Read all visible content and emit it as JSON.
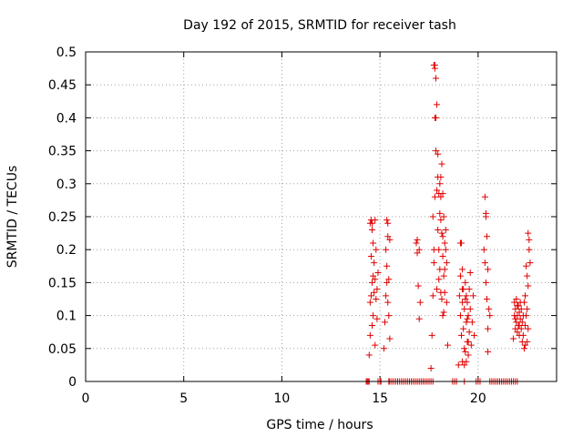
{
  "chart_data": {
    "type": "scatter",
    "title": "Day 192 of 2015, SRMTID for receiver tash",
    "xlabel": "GPS time / hours",
    "ylabel": "SRMTID / TECUs",
    "xlim": [
      0,
      24
    ],
    "ylim": [
      0,
      0.5
    ],
    "xticks": [
      0,
      5,
      10,
      15,
      20
    ],
    "yticks": [
      0,
      0.05,
      0.1,
      0.15,
      0.2,
      0.25,
      0.3,
      0.35,
      0.4,
      0.45,
      0.5
    ],
    "xtick_labels": [
      "0",
      "5",
      "10",
      "15",
      "20"
    ],
    "ytick_labels": [
      "0",
      "0.05",
      "0.1",
      "0.15",
      "0.2",
      "0.25",
      "0.3",
      "0.35",
      "0.4",
      "0.45",
      "0.5"
    ],
    "grid": true,
    "marker": "+",
    "color": "#e00000",
    "series": [
      {
        "name": "SRMTID",
        "points": [
          [
            14.3,
            0.0
          ],
          [
            14.35,
            0.0
          ],
          [
            14.4,
            0.0
          ],
          [
            14.45,
            0.0
          ],
          [
            14.9,
            0.0
          ],
          [
            15.0,
            0.0
          ],
          [
            15.05,
            0.0
          ],
          [
            15.45,
            0.0
          ],
          [
            15.5,
            0.0
          ],
          [
            15.6,
            0.0
          ],
          [
            15.7,
            0.0
          ],
          [
            15.8,
            0.0
          ],
          [
            15.9,
            0.0
          ],
          [
            16.0,
            0.0
          ],
          [
            16.1,
            0.0
          ],
          [
            16.2,
            0.0
          ],
          [
            16.3,
            0.0
          ],
          [
            16.4,
            0.0
          ],
          [
            16.5,
            0.0
          ],
          [
            16.6,
            0.0
          ],
          [
            16.7,
            0.0
          ],
          [
            16.8,
            0.0
          ],
          [
            16.9,
            0.0
          ],
          [
            17.0,
            0.0
          ],
          [
            17.1,
            0.0
          ],
          [
            17.2,
            0.0
          ],
          [
            17.3,
            0.0
          ],
          [
            17.4,
            0.0
          ],
          [
            17.5,
            0.0
          ],
          [
            17.6,
            0.0
          ],
          [
            17.7,
            0.0
          ],
          [
            18.7,
            0.0
          ],
          [
            18.8,
            0.0
          ],
          [
            18.9,
            0.0
          ],
          [
            19.3,
            0.0
          ],
          [
            19.9,
            0.0
          ],
          [
            20.0,
            0.0
          ],
          [
            20.1,
            0.0
          ],
          [
            20.6,
            0.0
          ],
          [
            20.7,
            0.0
          ],
          [
            20.8,
            0.0
          ],
          [
            20.9,
            0.0
          ],
          [
            21.0,
            0.0
          ],
          [
            21.1,
            0.0
          ],
          [
            21.2,
            0.0
          ],
          [
            21.3,
            0.0
          ],
          [
            21.4,
            0.0
          ],
          [
            21.5,
            0.0
          ],
          [
            21.6,
            0.0
          ],
          [
            21.7,
            0.0
          ],
          [
            21.8,
            0.0
          ],
          [
            21.9,
            0.0
          ],
          [
            22.0,
            0.0
          ],
          [
            14.45,
            0.04
          ],
          [
            14.5,
            0.07
          ],
          [
            14.5,
            0.12
          ],
          [
            14.5,
            0.24
          ],
          [
            14.55,
            0.245
          ],
          [
            14.55,
            0.13
          ],
          [
            14.6,
            0.23
          ],
          [
            14.6,
            0.15
          ],
          [
            14.6,
            0.085
          ],
          [
            14.65,
            0.21
          ],
          [
            14.65,
            0.16
          ],
          [
            14.65,
            0.1
          ],
          [
            14.7,
            0.18
          ],
          [
            14.7,
            0.135
          ],
          [
            14.75,
            0.245
          ],
          [
            14.75,
            0.155
          ],
          [
            14.75,
            0.055
          ],
          [
            14.8,
            0.2
          ],
          [
            14.8,
            0.125
          ],
          [
            14.85,
            0.14
          ],
          [
            14.85,
            0.095
          ],
          [
            14.9,
            0.165
          ],
          [
            14.6,
            0.24
          ],
          [
            14.55,
            0.19
          ],
          [
            15.2,
            0.05
          ],
          [
            15.25,
            0.09
          ],
          [
            15.3,
            0.13
          ],
          [
            15.3,
            0.2
          ],
          [
            15.35,
            0.245
          ],
          [
            15.35,
            0.175
          ],
          [
            15.4,
            0.22
          ],
          [
            15.4,
            0.12
          ],
          [
            15.45,
            0.155
          ],
          [
            15.45,
            0.1
          ],
          [
            15.5,
            0.215
          ],
          [
            15.5,
            0.065
          ],
          [
            15.35,
            0.15
          ],
          [
            15.4,
            0.24
          ],
          [
            16.85,
            0.21
          ],
          [
            16.9,
            0.195
          ],
          [
            16.95,
            0.145
          ],
          [
            17.0,
            0.095
          ],
          [
            17.05,
            0.12
          ],
          [
            16.9,
            0.215
          ],
          [
            17.0,
            0.2
          ],
          [
            17.6,
            0.02
          ],
          [
            17.65,
            0.07
          ],
          [
            17.7,
            0.13
          ],
          [
            17.7,
            0.25
          ],
          [
            17.75,
            0.18
          ],
          [
            17.75,
            0.48
          ],
          [
            17.8,
            0.475
          ],
          [
            17.8,
            0.4
          ],
          [
            17.85,
            0.46
          ],
          [
            17.85,
            0.35
          ],
          [
            17.9,
            0.42
          ],
          [
            17.9,
            0.29
          ],
          [
            17.9,
            0.14
          ],
          [
            17.95,
            0.345
          ],
          [
            17.95,
            0.23
          ],
          [
            18.0,
            0.285
          ],
          [
            18.0,
            0.2
          ],
          [
            18.0,
            0.155
          ],
          [
            18.05,
            0.255
          ],
          [
            18.05,
            0.17
          ],
          [
            18.1,
            0.31
          ],
          [
            18.1,
            0.245
          ],
          [
            18.1,
            0.135
          ],
          [
            18.15,
            0.33
          ],
          [
            18.15,
            0.225
          ],
          [
            18.15,
            0.125
          ],
          [
            18.2,
            0.285
          ],
          [
            18.2,
            0.19
          ],
          [
            18.2,
            0.1
          ],
          [
            18.25,
            0.25
          ],
          [
            18.25,
            0.16
          ],
          [
            18.3,
            0.21
          ],
          [
            18.3,
            0.135
          ],
          [
            18.35,
            0.23
          ],
          [
            18.35,
            0.2
          ],
          [
            18.4,
            0.18
          ],
          [
            18.4,
            0.12
          ],
          [
            18.45,
            0.055
          ],
          [
            17.8,
            0.48
          ],
          [
            17.85,
            0.4
          ],
          [
            17.95,
            0.31
          ],
          [
            18.05,
            0.3
          ],
          [
            18.1,
            0.28
          ],
          [
            18.2,
            0.22
          ],
          [
            18.3,
            0.17
          ],
          [
            17.75,
            0.2
          ],
          [
            17.8,
            0.28
          ],
          [
            18.25,
            0.105
          ],
          [
            19.0,
            0.025
          ],
          [
            19.05,
            0.13
          ],
          [
            19.1,
            0.16
          ],
          [
            19.1,
            0.1
          ],
          [
            19.15,
            0.21
          ],
          [
            19.15,
            0.07
          ],
          [
            19.2,
            0.17
          ],
          [
            19.2,
            0.12
          ],
          [
            19.2,
            0.03
          ],
          [
            19.25,
            0.14
          ],
          [
            19.25,
            0.08
          ],
          [
            19.3,
            0.11
          ],
          [
            19.3,
            0.05
          ],
          [
            19.35,
            0.15
          ],
          [
            19.35,
            0.045
          ],
          [
            19.4,
            0.13
          ],
          [
            19.4,
            0.09
          ],
          [
            19.45,
            0.12
          ],
          [
            19.45,
            0.06
          ],
          [
            19.5,
            0.1
          ],
          [
            19.5,
            0.04
          ],
          [
            19.55,
            0.14
          ],
          [
            19.55,
            0.075
          ],
          [
            19.6,
            0.165
          ],
          [
            19.6,
            0.11
          ],
          [
            19.65,
            0.055
          ],
          [
            19.7,
            0.09
          ],
          [
            19.75,
            0.13
          ],
          [
            19.8,
            0.07
          ],
          [
            19.1,
            0.21
          ],
          [
            19.2,
            0.14
          ],
          [
            19.3,
            0.025
          ],
          [
            19.4,
            0.03
          ],
          [
            19.5,
            0.06
          ],
          [
            19.45,
            0.095
          ],
          [
            19.35,
            0.125
          ],
          [
            20.3,
            0.2
          ],
          [
            20.35,
            0.28
          ],
          [
            20.35,
            0.18
          ],
          [
            20.4,
            0.25
          ],
          [
            20.4,
            0.15
          ],
          [
            20.45,
            0.22
          ],
          [
            20.45,
            0.125
          ],
          [
            20.5,
            0.17
          ],
          [
            20.5,
            0.08
          ],
          [
            20.55,
            0.11
          ],
          [
            20.5,
            0.045
          ],
          [
            20.6,
            0.1
          ],
          [
            20.4,
            0.255
          ],
          [
            21.8,
            0.065
          ],
          [
            21.85,
            0.1
          ],
          [
            21.85,
            0.12
          ],
          [
            21.9,
            0.08
          ],
          [
            21.9,
            0.11
          ],
          [
            21.95,
            0.09
          ],
          [
            21.95,
            0.125
          ],
          [
            22.0,
            0.075
          ],
          [
            22.0,
            0.1
          ],
          [
            22.05,
            0.115
          ],
          [
            22.05,
            0.085
          ],
          [
            22.1,
            0.105
          ],
          [
            22.1,
            0.07
          ],
          [
            22.15,
            0.095
          ],
          [
            22.15,
            0.12
          ],
          [
            22.2,
            0.08
          ],
          [
            22.2,
            0.11
          ],
          [
            22.25,
            0.09
          ],
          [
            22.25,
            0.06
          ],
          [
            21.9,
            0.095
          ],
          [
            22.0,
            0.115
          ],
          [
            22.1,
            0.085
          ],
          [
            22.3,
            0.07
          ],
          [
            22.35,
            0.12
          ],
          [
            22.35,
            0.05
          ],
          [
            22.4,
            0.13
          ],
          [
            22.4,
            0.085
          ],
          [
            22.45,
            0.175
          ],
          [
            22.45,
            0.1
          ],
          [
            22.5,
            0.16
          ],
          [
            22.5,
            0.06
          ],
          [
            22.55,
            0.225
          ],
          [
            22.55,
            0.145
          ],
          [
            22.6,
            0.2
          ],
          [
            22.6,
            0.215
          ],
          [
            22.65,
            0.18
          ],
          [
            22.4,
            0.055
          ],
          [
            22.5,
            0.11
          ],
          [
            22.3,
            0.1
          ],
          [
            22.55,
            0.08
          ]
        ]
      }
    ]
  }
}
